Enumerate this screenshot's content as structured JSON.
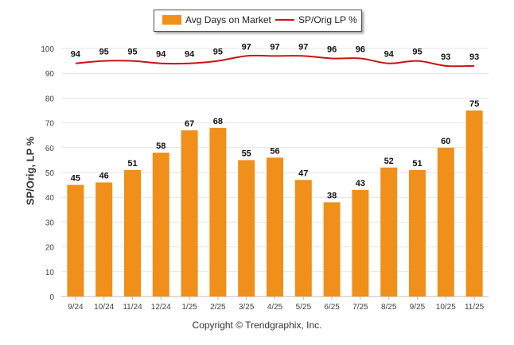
{
  "legend": {
    "bar_label": "Avg Days on Market",
    "line_label": "SP/Orig LP %"
  },
  "copyright": "Copyright © Trendgraphix, Inc.",
  "chart_data": {
    "type": "bar",
    "categories": [
      "9/24",
      "10/24",
      "11/24",
      "12/24",
      "1/25",
      "2/25",
      "3/25",
      "4/25",
      "5/25",
      "6/25",
      "7/25",
      "8/25",
      "9/25",
      "10/25",
      "11/25"
    ],
    "series": [
      {
        "name": "Avg Days on Market",
        "type": "bar",
        "color": "#f18f1b",
        "values": [
          45,
          46,
          51,
          58,
          67,
          68,
          55,
          56,
          47,
          38,
          43,
          52,
          51,
          60,
          75
        ]
      },
      {
        "name": "SP/Orig LP %",
        "type": "line",
        "color": "#c81414",
        "values": [
          94,
          95,
          95,
          94,
          94,
          95,
          97,
          97,
          97,
          96,
          96,
          94,
          95,
          93,
          93
        ]
      }
    ],
    "ylabel": "SP/Orig, LP %",
    "ylim": [
      0,
      100
    ],
    "yticks": [
      0,
      10,
      20,
      30,
      40,
      50,
      60,
      70,
      80,
      90,
      100
    ],
    "grid": true,
    "legend_position": "top-center"
  }
}
